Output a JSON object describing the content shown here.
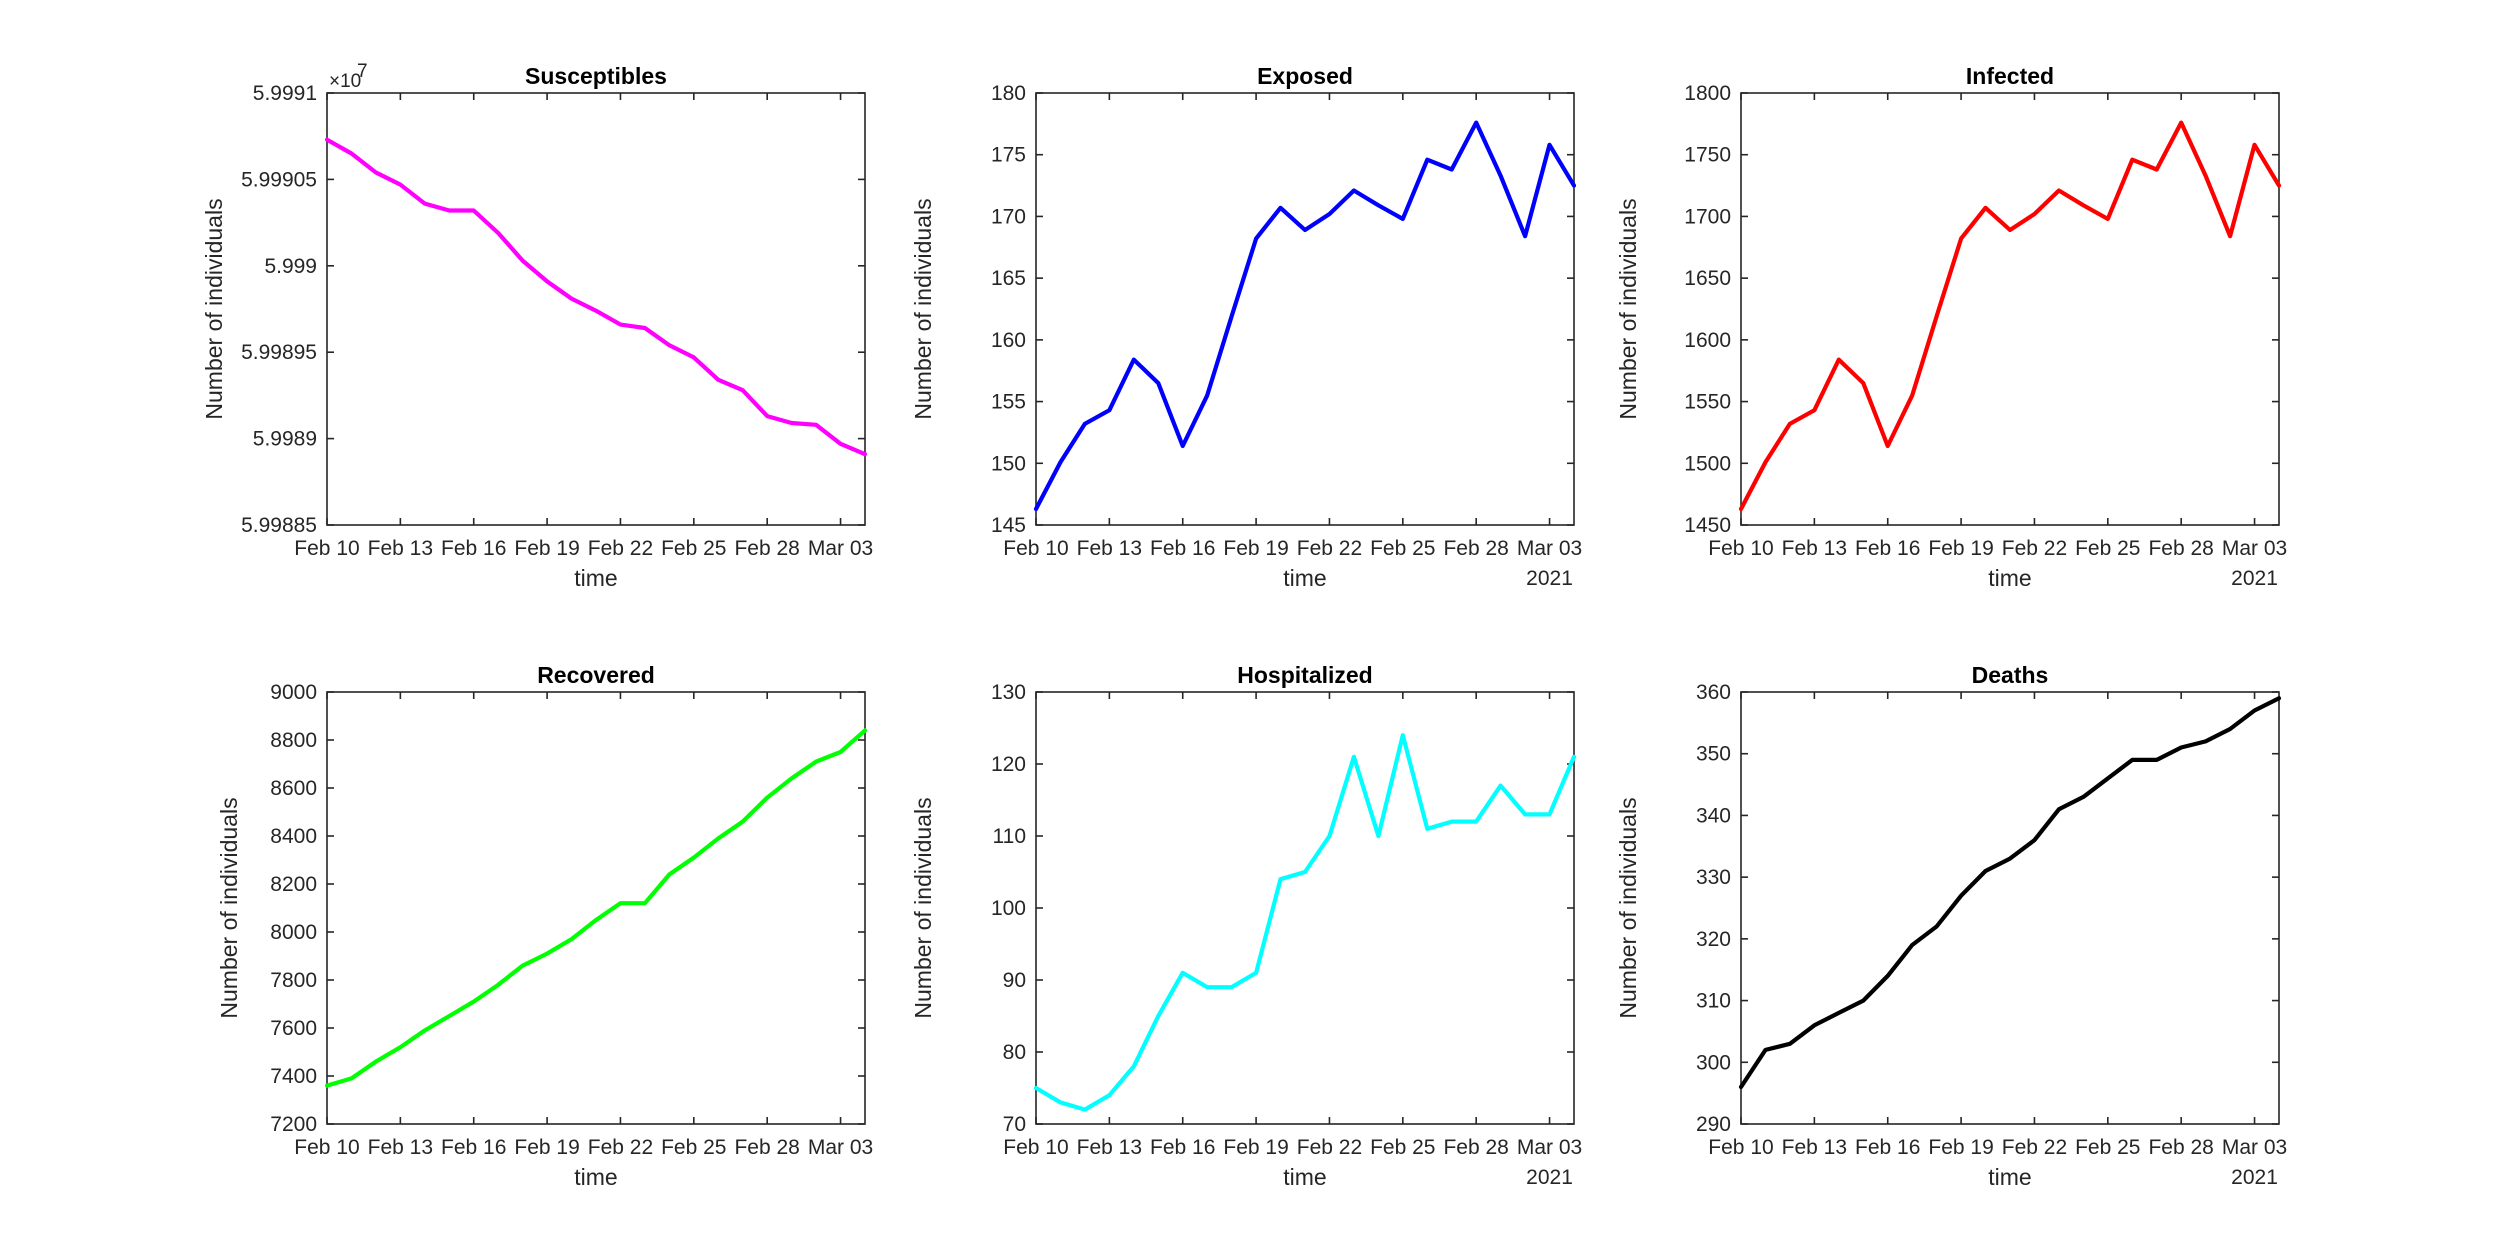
{
  "chart_data": [
    {
      "type": "line",
      "title": "Susceptibles",
      "xlabel": "time",
      "ylabel": "Number of individuals",
      "year_label": "",
      "y_exponent_label": "×10",
      "y_exponent_power": "7",
      "color": "#ff00ff",
      "x_tick_labels": [
        "Feb 10",
        "Feb 13",
        "Feb 16",
        "Feb 19",
        "Feb 22",
        "Feb 25",
        "Feb 28",
        "Mar 03"
      ],
      "x": [
        "Feb 10",
        "Feb 11",
        "Feb 12",
        "Feb 13",
        "Feb 14",
        "Feb 15",
        "Feb 16",
        "Feb 17",
        "Feb 18",
        "Feb 19",
        "Feb 20",
        "Feb 21",
        "Feb 22",
        "Feb 23",
        "Feb 24",
        "Feb 25",
        "Feb 26",
        "Feb 27",
        "Feb 28",
        "Mar 01",
        "Mar 02",
        "Mar 03",
        "Mar 04"
      ],
      "values": [
        5.999073,
        5.999065,
        5.999054,
        5.999047,
        5.999036,
        5.999032,
        5.999032,
        5.999019,
        5.999003,
        5.998991,
        5.998981,
        5.998974,
        5.998966,
        5.998964,
        5.998954,
        5.998947,
        5.998934,
        5.998928,
        5.998913,
        5.998909,
        5.998908,
        5.998897,
        5.998891
      ],
      "ylim": [
        5.99885,
        5.9991
      ],
      "y_ticks": [
        5.99885,
        5.9989,
        5.99895,
        5.999,
        5.99905,
        5.9991
      ],
      "y_tick_labels": [
        "5.99885",
        "5.9989",
        "5.99895",
        "5.999",
        "5.99905",
        "5.9991"
      ],
      "grid": false
    },
    {
      "type": "line",
      "title": "Exposed",
      "xlabel": "time",
      "ylabel": "Number of individuals",
      "year_label": "2021",
      "color": "#0000ff",
      "x_tick_labels": [
        "Feb 10",
        "Feb 13",
        "Feb 16",
        "Feb 19",
        "Feb 22",
        "Feb 25",
        "Feb 28",
        "Mar 03"
      ],
      "x": [
        "Feb 10",
        "Feb 11",
        "Feb 12",
        "Feb 13",
        "Feb 14",
        "Feb 15",
        "Feb 16",
        "Feb 17",
        "Feb 18",
        "Feb 19",
        "Feb 20",
        "Feb 21",
        "Feb 22",
        "Feb 23",
        "Feb 24",
        "Feb 25",
        "Feb 26",
        "Feb 27",
        "Feb 28",
        "Mar 01",
        "Mar 02",
        "Mar 03",
        "Mar 04"
      ],
      "values": [
        146.3,
        150.1,
        153.2,
        154.3,
        158.4,
        156.5,
        151.4,
        155.5,
        161.9,
        168.2,
        170.7,
        168.9,
        170.2,
        172.1,
        170.9,
        169.8,
        174.6,
        173.8,
        177.6,
        173.3,
        168.4,
        175.8,
        172.5
      ],
      "ylim": [
        145,
        180
      ],
      "y_ticks": [
        145,
        150,
        155,
        160,
        165,
        170,
        175,
        180
      ],
      "y_tick_labels": [
        "145",
        "150",
        "155",
        "160",
        "165",
        "170",
        "175",
        "180"
      ],
      "grid": false
    },
    {
      "type": "line",
      "title": "Infected",
      "xlabel": "time",
      "ylabel": "Number of individuals",
      "year_label": "2021",
      "color": "#ff0000",
      "x_tick_labels": [
        "Feb 10",
        "Feb 13",
        "Feb 16",
        "Feb 19",
        "Feb 22",
        "Feb 25",
        "Feb 28",
        "Mar 03"
      ],
      "x": [
        "Feb 10",
        "Feb 11",
        "Feb 12",
        "Feb 13",
        "Feb 14",
        "Feb 15",
        "Feb 16",
        "Feb 17",
        "Feb 18",
        "Feb 19",
        "Feb 20",
        "Feb 21",
        "Feb 22",
        "Feb 23",
        "Feb 24",
        "Feb 25",
        "Feb 26",
        "Feb 27",
        "Feb 28",
        "Mar 01",
        "Mar 02",
        "Mar 03",
        "Mar 04"
      ],
      "values": [
        1463,
        1501,
        1532,
        1543,
        1584,
        1565,
        1514,
        1555,
        1619,
        1682,
        1707,
        1689,
        1702,
        1721,
        1709,
        1698,
        1746,
        1738,
        1776,
        1733,
        1684,
        1758,
        1725
      ],
      "ylim": [
        1450,
        1800
      ],
      "y_ticks": [
        1450,
        1500,
        1550,
        1600,
        1650,
        1700,
        1750,
        1800
      ],
      "y_tick_labels": [
        "1450",
        "1500",
        "1550",
        "1600",
        "1650",
        "1700",
        "1750",
        "1800"
      ],
      "grid": false
    },
    {
      "type": "line",
      "title": "Recovered",
      "xlabel": "time",
      "ylabel": "Number of individuals",
      "year_label": "",
      "color": "#00ff00",
      "x_tick_labels": [
        "Feb 10",
        "Feb 13",
        "Feb 16",
        "Feb 19",
        "Feb 22",
        "Feb 25",
        "Feb 28",
        "Mar 03"
      ],
      "x": [
        "Feb 10",
        "Feb 11",
        "Feb 12",
        "Feb 13",
        "Feb 14",
        "Feb 15",
        "Feb 16",
        "Feb 17",
        "Feb 18",
        "Feb 19",
        "Feb 20",
        "Feb 21",
        "Feb 22",
        "Feb 23",
        "Feb 24",
        "Feb 25",
        "Feb 26",
        "Feb 27",
        "Feb 28",
        "Mar 01",
        "Mar 02",
        "Mar 03",
        "Mar 04"
      ],
      "values": [
        7360,
        7390,
        7460,
        7520,
        7590,
        7650,
        7710,
        7780,
        7860,
        7910,
        7970,
        8050,
        8120,
        8120,
        8240,
        8310,
        8390,
        8460,
        8560,
        8640,
        8710,
        8750,
        8840
      ],
      "ylim": [
        7200,
        9000
      ],
      "y_ticks": [
        7200,
        7400,
        7600,
        7800,
        8000,
        8200,
        8400,
        8600,
        8800,
        9000
      ],
      "y_tick_labels": [
        "7200",
        "7400",
        "7600",
        "7800",
        "8000",
        "8200",
        "8400",
        "8600",
        "8800",
        "9000"
      ],
      "grid": false
    },
    {
      "type": "line",
      "title": "Hospitalized",
      "xlabel": "time",
      "ylabel": "Number of individuals",
      "year_label": "2021",
      "color": "#00ffff",
      "x_tick_labels": [
        "Feb 10",
        "Feb 13",
        "Feb 16",
        "Feb 19",
        "Feb 22",
        "Feb 25",
        "Feb 28",
        "Mar 03"
      ],
      "x": [
        "Feb 10",
        "Feb 11",
        "Feb 12",
        "Feb 13",
        "Feb 14",
        "Feb 15",
        "Feb 16",
        "Feb 17",
        "Feb 18",
        "Feb 19",
        "Feb 20",
        "Feb 21",
        "Feb 22",
        "Feb 23",
        "Feb 24",
        "Feb 25",
        "Feb 26",
        "Feb 27",
        "Feb 28",
        "Mar 01",
        "Mar 02",
        "Mar 03",
        "Mar 04"
      ],
      "values": [
        75,
        73,
        72,
        74,
        78,
        85,
        91,
        89,
        89,
        91,
        104,
        105,
        110,
        121,
        110,
        124,
        111,
        112,
        112,
        117,
        113,
        113,
        121
      ],
      "ylim": [
        70,
        130
      ],
      "y_ticks": [
        70,
        80,
        90,
        100,
        110,
        120,
        130
      ],
      "y_tick_labels": [
        "70",
        "80",
        "90",
        "100",
        "110",
        "120",
        "130"
      ],
      "grid": false
    },
    {
      "type": "line",
      "title": "Deaths",
      "xlabel": "time",
      "ylabel": "Number of individuals",
      "year_label": "2021",
      "color": "#000000",
      "x_tick_labels": [
        "Feb 10",
        "Feb 13",
        "Feb 16",
        "Feb 19",
        "Feb 22",
        "Feb 25",
        "Feb 28",
        "Mar 03"
      ],
      "x": [
        "Feb 10",
        "Feb 11",
        "Feb 12",
        "Feb 13",
        "Feb 14",
        "Feb 15",
        "Feb 16",
        "Feb 17",
        "Feb 18",
        "Feb 19",
        "Feb 20",
        "Feb 21",
        "Feb 22",
        "Feb 23",
        "Feb 24",
        "Feb 25",
        "Feb 26",
        "Feb 27",
        "Feb 28",
        "Mar 01",
        "Mar 02",
        "Mar 03",
        "Mar 04"
      ],
      "values": [
        296,
        302,
        303,
        306,
        308,
        310,
        314,
        319,
        322,
        327,
        331,
        333,
        336,
        341,
        343,
        346,
        349,
        349,
        351,
        352,
        354,
        357,
        359
      ],
      "ylim": [
        290,
        360
      ],
      "y_ticks": [
        290,
        300,
        310,
        320,
        330,
        340,
        350,
        360
      ],
      "y_tick_labels": [
        "290",
        "300",
        "310",
        "320",
        "330",
        "340",
        "350",
        "360"
      ],
      "grid": false
    }
  ]
}
